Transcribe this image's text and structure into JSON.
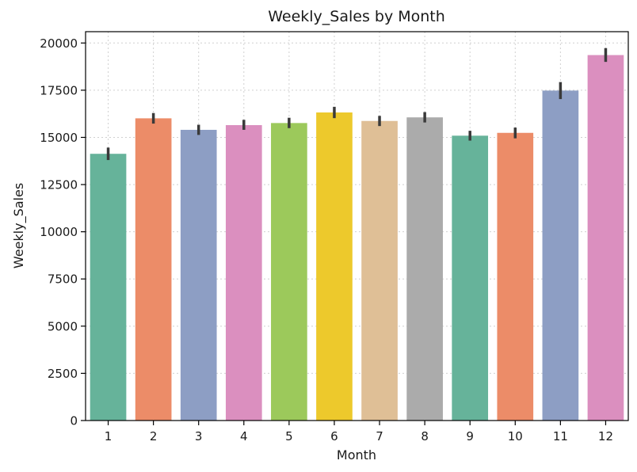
{
  "chart_data": {
    "type": "bar",
    "title": "Weekly_Sales by Month",
    "xlabel": "Month",
    "ylabel": "Weekly_Sales",
    "categories": [
      "1",
      "2",
      "3",
      "4",
      "5",
      "6",
      "7",
      "8",
      "9",
      "10",
      "11",
      "12"
    ],
    "values": [
      14130,
      16010,
      15400,
      15650,
      15760,
      16320,
      15870,
      16060,
      15090,
      15240,
      17480,
      19360
    ],
    "error_low": [
      13800,
      15730,
      15130,
      15400,
      15490,
      16020,
      15600,
      15790,
      14830,
      14950,
      17030,
      19000
    ],
    "error_high": [
      14460,
      16290,
      15670,
      15930,
      16040,
      16620,
      16140,
      16340,
      15350,
      15520,
      17930,
      19730
    ],
    "colors": [
      "#66b39a",
      "#ec8c68",
      "#8d9ec4",
      "#db8fbf",
      "#9cc95b",
      "#edc92c",
      "#dfbf96",
      "#ababab",
      "#66b39a",
      "#ec8c68",
      "#8d9ec4",
      "#db8fbf"
    ],
    "ylim": [
      0,
      20600
    ],
    "yticks": [
      0,
      2500,
      5000,
      7500,
      10000,
      12500,
      15000,
      17500,
      20000
    ],
    "ytick_labels": [
      "0",
      "2500",
      "5000",
      "7500",
      "10000",
      "12500",
      "15000",
      "17500",
      "20000"
    ],
    "grid": true,
    "legend": "none"
  }
}
